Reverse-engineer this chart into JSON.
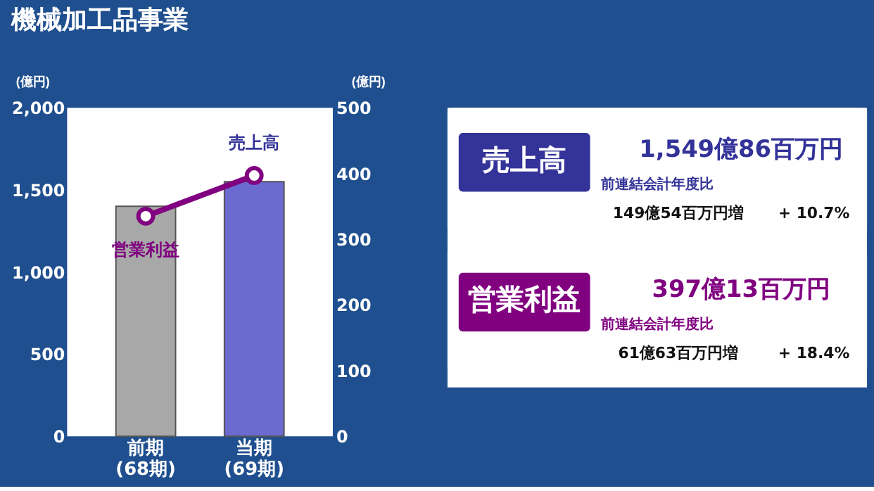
{
  "chart_data": [
    {
      "type": "bar",
      "title": "機械加工品事業",
      "categories": [
        "前期\n(68期)",
        "当期\n(69期)"
      ],
      "ylabel": "(億円)",
      "y2label": "(億円)",
      "ylim": [
        0,
        2000
      ],
      "yticks": [
        {
          "value": 0,
          "label": "0"
        },
        {
          "value": 500,
          "label": "500"
        },
        {
          "value": 1000,
          "label": "1,000"
        },
        {
          "value": 1500,
          "label": "1,500"
        },
        {
          "value": 2000,
          "label": "2,000"
        }
      ],
      "y2lim": [
        0,
        500
      ],
      "y2ticks": [
        0,
        100,
        200,
        300,
        400,
        500
      ],
      "grid": false,
      "series": [
        {
          "name": "売上高",
          "colors": [
            "#a8a8a8",
            "#6a6ad0"
          ],
          "color": "#333399",
          "values": [
            1400,
            1550
          ]
        },
        {
          "name": "営業利益",
          "type": "line",
          "axis": "y2",
          "color": "#800080",
          "marker": "circle",
          "values": [
            335,
            397
          ]
        }
      ]
    },
    {
      "type": "other",
      "colors": [
        "#333399",
        "#800080"
      ],
      "annotations": [
        "売上高",
        "1,549億86百万円",
        "前連結会計年度比",
        "149億54百万円増",
        "+ 10.7%",
        "営業利益",
        "397億13百万円",
        "前連結会計年度比",
        "61億63百万円増",
        "+ 18.4%"
      ]
    }
  ]
}
